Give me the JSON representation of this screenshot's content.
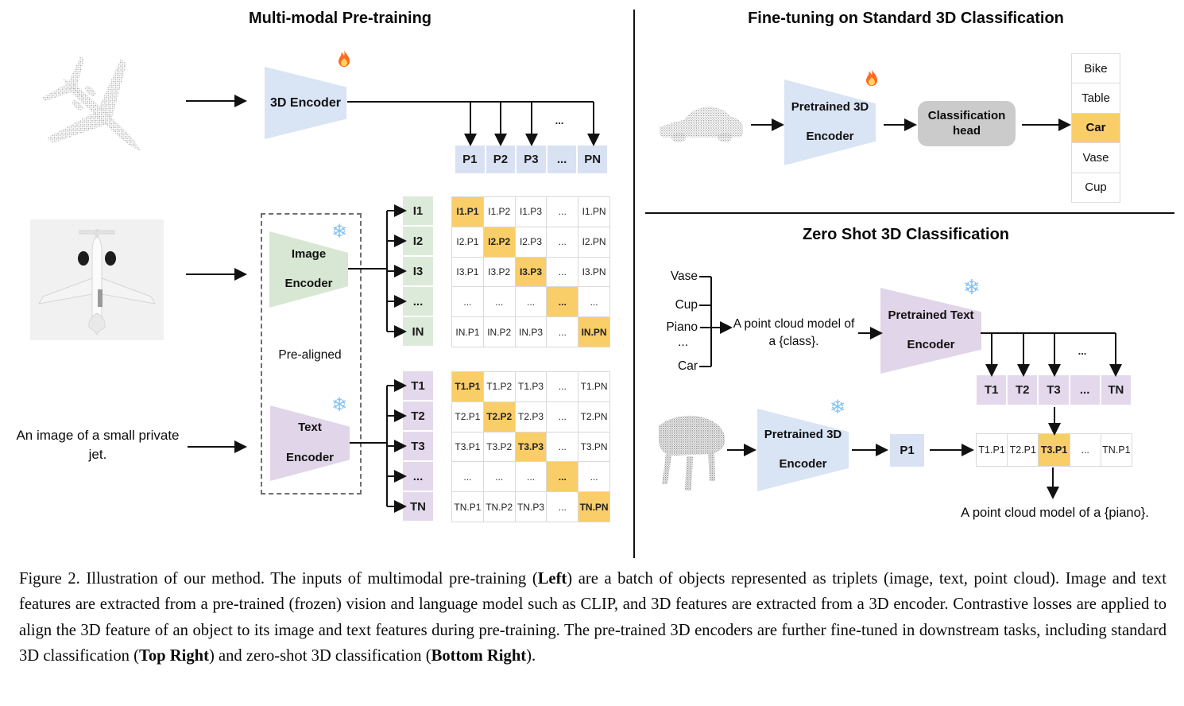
{
  "icons": {
    "fire": "fire-icon",
    "snowflake": "❄"
  },
  "colors": {
    "blue_cell": "#d9e2f3",
    "blue_trap": "#d9e4f5",
    "green": "#d7e7d3",
    "purple": "#e1d5e9",
    "highlight_orange": "#f9cd68",
    "gray_head": "#cbcbcb",
    "cell_border": "#d9d9d9",
    "snowflake_blue": "#85c4f1"
  },
  "left": {
    "title": "Multi-modal Pre-training",
    "encoder_3d_label": "3D Encoder",
    "p_row": [
      "P1",
      "P2",
      "P3",
      "...",
      "PN"
    ],
    "branch_ellipsis": "...",
    "image_encoder_line1": "Image",
    "image_encoder_line2": "Encoder",
    "text_encoder_line1": "Text",
    "text_encoder_line2": "Encoder",
    "prealigned_label": "Pre-aligned",
    "image_caption": "An image of a small private jet.",
    "i_col": [
      "I1",
      "I2",
      "I3",
      "...",
      "IN"
    ],
    "t_col": [
      "T1",
      "T2",
      "T3",
      "...",
      "TN"
    ],
    "i_matrix": [
      [
        "I1.P1",
        "I1.P2",
        "I1.P3",
        "...",
        "I1.PN"
      ],
      [
        "I2.P1",
        "I2.P2",
        "I2.P3",
        "...",
        "I2.PN"
      ],
      [
        "I3.P1",
        "I3.P2",
        "I3.P3",
        "...",
        "I3.PN"
      ],
      [
        "...",
        "...",
        "...",
        "...",
        "..."
      ],
      [
        "IN.P1",
        "IN.P2",
        "IN.P3",
        "...",
        "IN.PN"
      ]
    ],
    "t_matrix": [
      [
        "T1.P1",
        "T1.P2",
        "T1.P3",
        "...",
        "T1.PN"
      ],
      [
        "T2.P1",
        "T2.P2",
        "T2.P3",
        "...",
        "T2.PN"
      ],
      [
        "T3.P1",
        "T3.P2",
        "T3.P3",
        "...",
        "T3.PN"
      ],
      [
        "...",
        "...",
        "...",
        "...",
        "..."
      ],
      [
        "TN.P1",
        "TN.P2",
        "TN.P3",
        "...",
        "TN.PN"
      ]
    ]
  },
  "top_right": {
    "title": "Fine-tuning on Standard 3D Classification",
    "encoder_line1": "Pretrained 3D",
    "encoder_line2": "Encoder",
    "head_line1": "Classification",
    "head_line2": "head",
    "classes": [
      {
        "label": "Bike",
        "highlight": false
      },
      {
        "label": "Table",
        "highlight": false
      },
      {
        "label": "Car",
        "highlight": true
      },
      {
        "label": "Vase",
        "highlight": false
      },
      {
        "label": "Cup",
        "highlight": false
      }
    ]
  },
  "bottom_right": {
    "title": "Zero Shot 3D Classification",
    "class_list": [
      "Vase",
      "Cup",
      "Piano",
      "...",
      "Car"
    ],
    "prompt_line1": "A point cloud model of",
    "prompt_line2": "a {class}.",
    "text_encoder_line1": "Pretrained Text",
    "text_encoder_line2": "Encoder",
    "encoder_3d_line1": "Pretrained 3D",
    "encoder_3d_line2": "Encoder",
    "t_row": [
      "T1",
      "T2",
      "T3",
      "...",
      "TN"
    ],
    "branch_ellipsis": "...",
    "p1_label": "P1",
    "sim_row": {
      "cells": [
        "T1.P1",
        "T2.P1",
        "T3.P1",
        "...",
        "TN.P1"
      ],
      "highlight_index": 2
    },
    "result": "A point cloud model of a {piano}."
  },
  "caption": {
    "segments": [
      {
        "text": "Figure 2. Illustration of our method. The inputs of multimodal pre-training (",
        "bold": false
      },
      {
        "text": "Left",
        "bold": true
      },
      {
        "text": ") are a batch of objects represented as triplets (image, text, point cloud).  Image and text features are extracted from a pre-trained (frozen) vision and language model such as CLIP, and 3D features are extracted from a 3D encoder.  Contrastive losses are applied to align the 3D feature of an object to its image and text features during pre-training.  The pre-trained 3D encoders are further fine-tuned in downstream tasks, including standard 3D classification (",
        "bold": false
      },
      {
        "text": "Top Right",
        "bold": true
      },
      {
        "text": ") and zero-shot 3D classification (",
        "bold": false
      },
      {
        "text": "Bottom Right",
        "bold": true
      },
      {
        "text": ").",
        "bold": false
      }
    ]
  }
}
